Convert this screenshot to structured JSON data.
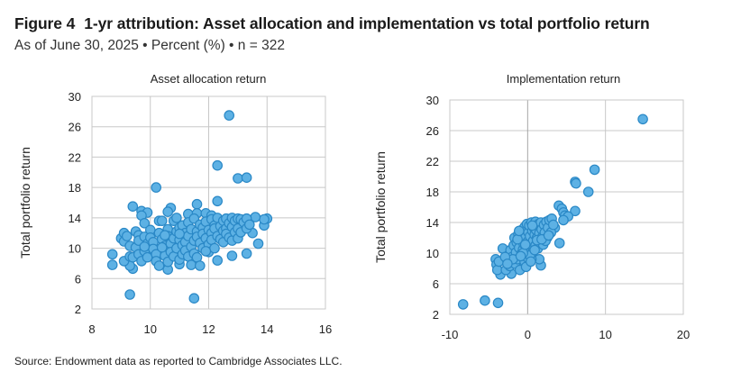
{
  "figure": {
    "label": "Figure 4",
    "title": "1-yr attribution: Asset allocation and implementation vs total portfolio return",
    "subtitle": "As of June 30, 2025 • Percent (%) • n = 322",
    "source": "Source: Endowment data as reported to Cambridge Associates LLC."
  },
  "colors": {
    "marker_fill": "#5db1e4",
    "marker_stroke": "#2a88c6",
    "grid": "#c8c8c8",
    "zero_line": "#a6a6a6"
  },
  "chart_data": [
    {
      "type": "scatter",
      "title": "Asset allocation return",
      "xlabel": "",
      "ylabel": "Total portfolio return",
      "xlim": [
        8,
        16
      ],
      "ylim": [
        2,
        30
      ],
      "xticks": [
        8,
        10,
        12,
        14,
        16
      ],
      "xtick_labels": [
        "8",
        "10",
        "12",
        "14",
        "16"
      ],
      "yticks": [
        2,
        6,
        10,
        14,
        18,
        22,
        26,
        30
      ],
      "ytick_labels": [
        "2",
        "6",
        "10",
        "14",
        "18",
        "22",
        "26",
        "30"
      ],
      "grid": true,
      "points": [
        [
          12.7,
          27.5
        ],
        [
          12.3,
          20.9
        ],
        [
          13.0,
          19.2
        ],
        [
          13.3,
          19.3
        ],
        [
          10.2,
          18.0
        ],
        [
          12.3,
          16.2
        ],
        [
          11.6,
          15.8
        ],
        [
          9.4,
          15.5
        ],
        [
          9.7,
          14.9
        ],
        [
          9.9,
          14.7
        ],
        [
          9.7,
          14.3
        ],
        [
          9.8,
          13.3
        ],
        [
          10.7,
          15.3
        ],
        [
          10.6,
          14.8
        ],
        [
          11.3,
          14.5
        ],
        [
          11.6,
          14.6
        ],
        [
          11.9,
          14.6
        ],
        [
          12.1,
          14.3
        ],
        [
          8.7,
          7.8
        ],
        [
          8.7,
          9.2
        ],
        [
          9.3,
          3.9
        ],
        [
          11.5,
          3.4
        ],
        [
          13.7,
          10.6
        ],
        [
          13.3,
          9.3
        ],
        [
          12.8,
          9.0
        ],
        [
          12.3,
          8.4
        ],
        [
          13.9,
          13.0
        ],
        [
          14.0,
          13.9
        ],
        [
          13.9,
          13.8
        ],
        [
          13.6,
          14.1
        ],
        [
          13.5,
          12.0
        ],
        [
          10.6,
          7.2
        ],
        [
          9.4,
          7.3
        ],
        [
          9.3,
          7.7
        ],
        [
          9.0,
          11.3
        ],
        [
          9.1,
          12.0
        ],
        [
          9.1,
          10.9
        ],
        [
          9.2,
          11.6
        ],
        [
          9.3,
          10.3
        ],
        [
          9.5,
          12.2
        ],
        [
          9.6,
          11.7
        ],
        [
          9.5,
          10.1
        ],
        [
          9.1,
          8.3
        ],
        [
          9.3,
          8.9
        ],
        [
          9.4,
          8.8
        ],
        [
          9.6,
          9.2
        ],
        [
          9.7,
          8.3
        ],
        [
          9.6,
          11.0
        ],
        [
          9.8,
          11.5
        ],
        [
          9.8,
          9.6
        ],
        [
          9.9,
          8.8
        ],
        [
          9.9,
          10.6
        ],
        [
          10.0,
          12.4
        ],
        [
          10.0,
          11.4
        ],
        [
          10.1,
          10.8
        ],
        [
          10.1,
          9.9
        ],
        [
          10.2,
          9.2
        ],
        [
          10.2,
          8.3
        ],
        [
          10.3,
          7.7
        ],
        [
          10.3,
          12.0
        ],
        [
          10.3,
          13.6
        ],
        [
          10.4,
          13.6
        ],
        [
          10.4,
          11.2
        ],
        [
          10.5,
          10.3
        ],
        [
          10.5,
          9.0
        ],
        [
          10.6,
          8.2
        ],
        [
          10.6,
          12.5
        ],
        [
          10.6,
          11.6
        ],
        [
          10.7,
          10.6
        ],
        [
          10.7,
          9.5
        ],
        [
          10.8,
          13.6
        ],
        [
          10.8,
          11.3
        ],
        [
          10.8,
          8.9
        ],
        [
          10.9,
          12.2
        ],
        [
          10.9,
          10.0
        ],
        [
          10.9,
          14.0
        ],
        [
          11.0,
          7.9
        ],
        [
          11.0,
          8.5
        ],
        [
          11.0,
          12.7
        ],
        [
          11.0,
          11.1
        ],
        [
          11.1,
          10.4
        ],
        [
          11.1,
          9.2
        ],
        [
          11.1,
          13.0
        ],
        [
          11.2,
          12.0
        ],
        [
          11.2,
          10.8
        ],
        [
          11.2,
          9.7
        ],
        [
          11.3,
          13.4
        ],
        [
          11.3,
          11.6
        ],
        [
          11.3,
          8.9
        ],
        [
          11.4,
          7.8
        ],
        [
          11.4,
          12.5
        ],
        [
          11.4,
          10.2
        ],
        [
          11.5,
          11.0
        ],
        [
          11.5,
          13.9
        ],
        [
          11.5,
          9.3
        ],
        [
          11.6,
          12.2
        ],
        [
          11.6,
          11.5
        ],
        [
          11.6,
          8.8
        ],
        [
          11.7,
          7.7
        ],
        [
          11.7,
          10.7
        ],
        [
          11.7,
          13.1
        ],
        [
          11.8,
          12.7
        ],
        [
          11.8,
          11.9
        ],
        [
          11.8,
          10.0
        ],
        [
          11.9,
          13.5
        ],
        [
          11.9,
          11.3
        ],
        [
          12.0,
          12.4
        ],
        [
          12.0,
          10.5
        ],
        [
          12.0,
          9.5
        ],
        [
          12.1,
          13.8
        ],
        [
          12.1,
          12.0
        ],
        [
          12.1,
          11.1
        ],
        [
          12.2,
          13.0
        ],
        [
          12.2,
          10.0
        ],
        [
          12.2,
          12.6
        ],
        [
          12.3,
          11.6
        ],
        [
          12.3,
          14.0
        ],
        [
          12.4,
          12.9
        ],
        [
          12.4,
          11.2
        ],
        [
          12.5,
          13.6
        ],
        [
          12.5,
          12.3
        ],
        [
          12.5,
          10.8
        ],
        [
          12.6,
          13.9
        ],
        [
          12.6,
          12.6
        ],
        [
          12.6,
          11.9
        ],
        [
          12.7,
          13.3
        ],
        [
          12.7,
          11.4
        ],
        [
          12.8,
          14.0
        ],
        [
          12.8,
          12.8
        ],
        [
          12.8,
          11.0
        ],
        [
          12.9,
          13.6
        ],
        [
          12.9,
          12.1
        ],
        [
          13.0,
          13.9
        ],
        [
          13.0,
          12.6
        ],
        [
          13.0,
          11.3
        ],
        [
          13.1,
          13.8
        ],
        [
          13.1,
          12.1
        ],
        [
          13.2,
          13.4
        ],
        [
          13.3,
          13.9
        ],
        [
          13.3,
          12.6
        ],
        [
          13.4,
          13.1
        ],
        [
          10.4,
          10.1
        ],
        [
          10.5,
          11.7
        ],
        [
          11.0,
          11.9
        ],
        [
          11.9,
          9.6
        ],
        [
          9.8,
          10.2
        ]
      ]
    },
    {
      "type": "scatter",
      "title": "Implementation return",
      "xlabel": "",
      "ylabel": "Total portfolio return",
      "xlim": [
        -10,
        20
      ],
      "ylim": [
        2,
        30
      ],
      "xticks": [
        -10,
        0,
        10,
        20
      ],
      "xtick_labels": [
        "-10",
        "0",
        "10",
        "20"
      ],
      "yticks": [
        2,
        6,
        10,
        14,
        18,
        22,
        26,
        30
      ],
      "ytick_labels": [
        "2",
        "6",
        "10",
        "14",
        "18",
        "22",
        "26",
        "30"
      ],
      "grid": true,
      "points": [
        [
          14.8,
          27.5
        ],
        [
          8.6,
          20.9
        ],
        [
          6.1,
          19.3
        ],
        [
          6.2,
          19.1
        ],
        [
          7.8,
          18.0
        ],
        [
          6.1,
          15.5
        ],
        [
          4.0,
          16.2
        ],
        [
          4.4,
          15.8
        ],
        [
          4.6,
          15.3
        ],
        [
          4.8,
          14.9
        ],
        [
          5.2,
          14.8
        ],
        [
          4.6,
          14.3
        ],
        [
          3.5,
          13.3
        ],
        [
          4.1,
          11.3
        ],
        [
          1.7,
          8.4
        ],
        [
          1.5,
          9.2
        ],
        [
          -8.3,
          3.3
        ],
        [
          -5.5,
          3.8
        ],
        [
          -3.8,
          3.5
        ],
        [
          -3.5,
          7.2
        ],
        [
          -2.1,
          7.3
        ],
        [
          -3.2,
          10.6
        ],
        [
          -4.1,
          9.2
        ],
        [
          -4.0,
          8.5
        ],
        [
          -3.9,
          7.8
        ],
        [
          -3.7,
          8.9
        ],
        [
          -2.8,
          7.8
        ],
        [
          -2.6,
          9.0
        ],
        [
          -2.5,
          9.7
        ],
        [
          -2.3,
          8.3
        ],
        [
          -2.2,
          10.4
        ],
        [
          -2.0,
          9.5
        ],
        [
          -1.8,
          11.0
        ],
        [
          -1.7,
          12.0
        ],
        [
          -1.6,
          8.6
        ],
        [
          -1.5,
          10.1
        ],
        [
          -1.4,
          11.4
        ],
        [
          -1.3,
          9.2
        ],
        [
          -1.2,
          12.5
        ],
        [
          -1.1,
          10.7
        ],
        [
          -1.0,
          7.8
        ],
        [
          -0.9,
          11.8
        ],
        [
          -0.8,
          13.0
        ],
        [
          -0.8,
          9.9
        ],
        [
          -0.7,
          12.3
        ],
        [
          -0.6,
          10.5
        ],
        [
          -0.5,
          11.2
        ],
        [
          -0.4,
          13.4
        ],
        [
          -0.4,
          8.9
        ],
        [
          -0.3,
          12.0
        ],
        [
          -0.2,
          10.1
        ],
        [
          -0.1,
          13.8
        ],
        [
          0.0,
          11.5
        ],
        [
          0.0,
          9.4
        ],
        [
          0.1,
          12.7
        ],
        [
          0.2,
          10.7
        ],
        [
          0.2,
          13.6
        ],
        [
          0.3,
          12.2
        ],
        [
          0.4,
          11.0
        ],
        [
          0.5,
          14.0
        ],
        [
          0.5,
          9.2
        ],
        [
          0.6,
          12.9
        ],
        [
          0.7,
          11.6
        ],
        [
          0.7,
          10.2
        ],
        [
          0.8,
          13.3
        ],
        [
          0.9,
          12.4
        ],
        [
          1.0,
          14.1
        ],
        [
          1.0,
          11.0
        ],
        [
          1.1,
          13.0
        ],
        [
          1.2,
          12.0
        ],
        [
          1.3,
          10.6
        ],
        [
          1.4,
          13.8
        ],
        [
          1.5,
          12.6
        ],
        [
          1.6,
          11.4
        ],
        [
          1.7,
          14.0
        ],
        [
          1.8,
          13.1
        ],
        [
          1.9,
          12.1
        ],
        [
          2.0,
          11.1
        ],
        [
          2.1,
          13.7
        ],
        [
          2.2,
          12.7
        ],
        [
          2.4,
          14.1
        ],
        [
          2.5,
          12.0
        ],
        [
          2.6,
          13.3
        ],
        [
          2.8,
          14.3
        ],
        [
          3.0,
          12.7
        ],
        [
          3.1,
          14.5
        ],
        [
          3.3,
          13.7
        ],
        [
          2.3,
          11.6
        ],
        [
          -0.2,
          8.2
        ],
        [
          0.3,
          9.7
        ],
        [
          -1.9,
          9.2
        ],
        [
          -1.3,
          11.8
        ],
        [
          -0.6,
          10.0
        ],
        [
          0.9,
          10.4
        ],
        [
          1.2,
          11.7
        ],
        [
          -2.9,
          9.5
        ],
        [
          -2.6,
          8.6
        ],
        [
          -0.9,
          9.6
        ],
        [
          0.4,
          8.9
        ],
        [
          1.8,
          11.8
        ],
        [
          2.7,
          12.3
        ],
        [
          -1.1,
          12.9
        ],
        [
          -0.3,
          11.1
        ],
        [
          0.6,
          13.6
        ]
      ]
    }
  ]
}
